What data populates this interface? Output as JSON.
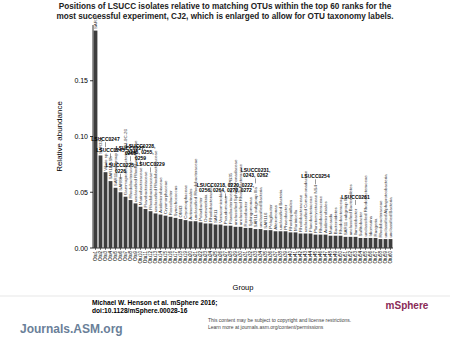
{
  "chart_data": {
    "type": "bar",
    "title": "Positions of LSUCC isolates relative to matching OTUs within the top 60 ranks for the most successful experiment, CJ2, which is enlarged to allow for OTU taxonomy labels.",
    "x_label": "Group",
    "y_label": "Relative abundance",
    "color": "#3d3d3d",
    "ylim": [
      0,
      0.2
    ],
    "yticks": [
      {
        "value": 0,
        "label": "0.00"
      },
      {
        "value": 0.05,
        "label": "0.05"
      },
      {
        "value": 0.1,
        "label": "0.10"
      },
      {
        "value": 0.15,
        "label": "0.15"
      }
    ],
    "categories": [
      "Otu1",
      "Otu2",
      "Otu3",
      "Otu4",
      "Otu5",
      "Otu6",
      "Otu7",
      "Otu8",
      "Otu9",
      "Otu10",
      "Otu11",
      "Otu12",
      "Otu13",
      "Otu14",
      "Otu15",
      "Otu16",
      "Otu17",
      "Otu18",
      "Otu19",
      "Otu20",
      "Otu21",
      "Otu22",
      "Otu23",
      "Otu24",
      "Otu25",
      "Otu26",
      "Otu27",
      "Otu28",
      "Otu29",
      "Otu30",
      "Otu31",
      "Otu32",
      "Otu33",
      "Otu34",
      "Otu35",
      "Otu36",
      "Otu37",
      "Otu38",
      "Otu39",
      "Otu40",
      "Otu41",
      "Otu42",
      "Otu43",
      "Otu44",
      "Otu45",
      "Otu46",
      "Otu47",
      "Otu48",
      "Otu49",
      "Otu50",
      "Otu51",
      "Otu52",
      "Otu53",
      "Otu54",
      "Otu55",
      "Otu56",
      "Otu57",
      "Otu58",
      "Otu59",
      "Otu60"
    ],
    "values": [
      0.195,
      0.083,
      0.068,
      0.06,
      0.054,
      0.05,
      0.046,
      0.043,
      0.04,
      0.037,
      0.035,
      0.033,
      0.031,
      0.03,
      0.029,
      0.028,
      0.027,
      0.026,
      0.025,
      0.024,
      0.024,
      0.023,
      0.022,
      0.022,
      0.021,
      0.021,
      0.02,
      0.02,
      0.019,
      0.019,
      0.018,
      0.018,
      0.017,
      0.017,
      0.016,
      0.016,
      0.015,
      0.015,
      0.015,
      0.014,
      0.014,
      0.013,
      0.013,
      0.013,
      0.012,
      0.012,
      0.012,
      0.011,
      0.011,
      0.011,
      0.01,
      0.01,
      0.01,
      0.009,
      0.009,
      0.009,
      0.009,
      0.008,
      0.008,
      0.008
    ],
    "bar_labels": [
      "SAR11",
      "SAR324",
      "Vibrio sp.",
      "SAR11 NS5",
      "SAR11 subgroup Ia",
      "SAR86",
      "Gammaproteobacteria E01-9C-26",
      "Rhodobacteraceae",
      "unclassified Rhodobacteraceae",
      "Marinobacteraceae",
      "Flavobacteriaceae",
      "Rhodobacteraceae",
      "unclassified Rhodobacteraceae",
      "Acidimicrobiaceae",
      "Cryomorphaceae",
      "Roseobacter",
      "Synechococcus",
      "OM43",
      "Cryomorphaceae",
      "Actinomarinales",
      "unclassified Rhodobacteraceae",
      "Polaribacter",
      "Owenweeksia",
      "Rhodobacteraceae",
      "SAR11",
      "Verrucomicrobia",
      "Pseudomonas",
      "Flavobacteriaceae OPB35",
      "unclassified Sphingomonadaceae",
      "unclassified Rhodobacteraceae",
      "Roseobacter",
      "Sphingomonas",
      "SAR11 subgroup IIIa",
      "unclassified Bacteria",
      "SAR116",
      "Pelagibacter",
      "Alteromonas",
      "unclassified Bacteria",
      "Phaeobacter",
      "Rhodospirillales",
      "Marinicella",
      "Rhodobacteraceae",
      "unclassified Comamonadaceae",
      "Flavobacteriaceae",
      "Planctomycetaceae NS4",
      "Rhodobacteraceae",
      "Acidimicrobiales",
      "Muricauda",
      "Bacteroidetes",
      "Rhodobacteraceae",
      "SAR11 subgroup III",
      "unclassified Bacteroidetes",
      "Ilumatobacter",
      "Sulfitobacter",
      "unclassified Rhodobacteraceae",
      "Idiomarina",
      "Ruegeria",
      "Rhodobacteraceae",
      "unclassified Alphaproteobacteria",
      "unclassified Bacteria"
    ],
    "annotations": [
      {
        "index": 2,
        "lines": [
          "LSUCC0247"
        ]
      },
      {
        "index": 3,
        "lines": [
          "LSUCC0245"
        ]
      },
      {
        "index": 5,
        "lines": [
          "LSUCC0225,",
          "0226"
        ]
      },
      {
        "index": 7,
        "lines": [
          "LSUCC0227,",
          "0268"
        ]
      },
      {
        "index": 9,
        "lines": [
          "LSUCC0228,",
          "0248, 0255,",
          "0259"
        ]
      },
      {
        "index": 11,
        "lines": [
          "LSUCC0229"
        ]
      },
      {
        "index": 26,
        "lines": [
          "LSUCC0218, 0220, 0222,",
          "0256, 0264, 0270, 0272"
        ]
      },
      {
        "index": 32,
        "lines": [
          "LSUCC0231,",
          "0243, 0262"
        ]
      },
      {
        "index": 44,
        "lines": [
          "LSUCC0254"
        ]
      },
      {
        "index": 52,
        "lines": [
          "LSUCC0261"
        ]
      }
    ],
    "footer": {
      "citation": "Michael W. Henson et al. mSphere 2016;",
      "doi": "doi:10.1128/mSphere.00028-16",
      "publisher": "Journals.ASM.org",
      "notice": [
        "This content may be subject to copyright and license restrictions.",
        "Learn more at journals.asm.org/content/permissions"
      ],
      "logo": "mSphere"
    }
  }
}
